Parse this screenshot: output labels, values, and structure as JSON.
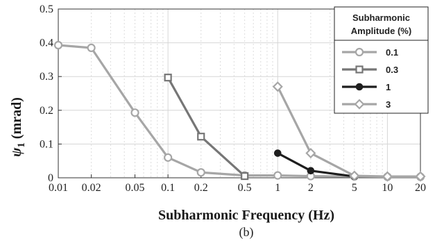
{
  "chart_data": {
    "type": "line",
    "xscale": "log",
    "xlabel": "Subharmonic Frequency (Hz)",
    "ylabel": "ψ",
    "ylabel_sub": "1",
    "ylabel_unit": " (mrad)",
    "xlim": [
      0.01,
      20
    ],
    "ylim": [
      0,
      0.5
    ],
    "xticks": [
      0.01,
      0.02,
      0.05,
      0.1,
      0.2,
      0.5,
      1,
      2,
      5,
      10,
      20
    ],
    "xtick_labels": [
      "0.01",
      "0.02",
      "0.05",
      "0.1",
      "0.2",
      "0.5",
      "1",
      "2",
      "5",
      "10",
      "20"
    ],
    "yticks": [
      0,
      0.1,
      0.2,
      0.3,
      0.4,
      0.5
    ],
    "ytick_labels": [
      "0",
      "0.1",
      "0.2",
      "0.3",
      "0.4",
      "0.5"
    ],
    "grid": true,
    "legend_placement": "top-right",
    "legend_title": [
      "Subharmonic",
      "Amplitude (%)"
    ],
    "caption": "(b)",
    "series": [
      {
        "name": "0.1",
        "color": "#a6a6a6",
        "marker": "circle",
        "x": [
          0.01,
          0.02,
          0.05,
          0.1,
          0.2,
          0.5,
          1,
          2,
          5,
          10,
          20
        ],
        "y": [
          0.393,
          0.385,
          0.193,
          0.06,
          0.016,
          0.007,
          0.007,
          0.005,
          0.004,
          0.003,
          0.003
        ]
      },
      {
        "name": "0.3",
        "color": "#767676",
        "marker": "square",
        "x": [
          0.1,
          0.2,
          0.5
        ],
        "y": [
          0.297,
          0.122,
          0.005
        ]
      },
      {
        "name": "1",
        "color": "#1e1e1e",
        "marker": "dot",
        "x": [
          1,
          2,
          5
        ],
        "y": [
          0.073,
          0.021,
          0.004
        ]
      },
      {
        "name": "3",
        "color": "#a6a6a6",
        "marker": "diamond",
        "x": [
          1,
          2,
          5,
          10,
          20
        ],
        "y": [
          0.27,
          0.073,
          0.006,
          0.004,
          0.004
        ]
      }
    ]
  }
}
